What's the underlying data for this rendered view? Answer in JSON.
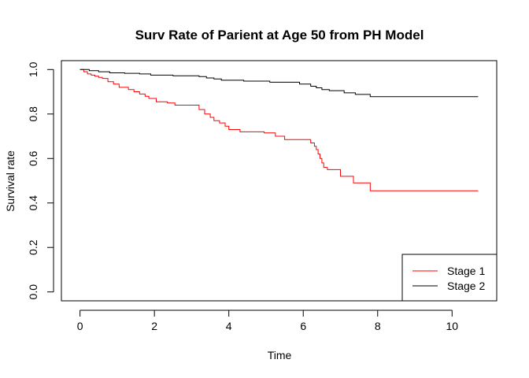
{
  "chart_data": {
    "type": "line",
    "title": "Surv Rate of Parient at Age 50 from PH Model",
    "xlabel": "Time",
    "ylabel": "Survival rate",
    "xlim": [
      -0.5,
      11.2
    ],
    "ylim": [
      -0.04,
      1.04
    ],
    "x_ticks": [
      0,
      2,
      4,
      6,
      8,
      10
    ],
    "y_ticks": [
      0.0,
      0.2,
      0.4,
      0.6,
      0.8,
      1.0
    ],
    "x_tick_labels": [
      "0",
      "2",
      "4",
      "6",
      "8",
      "10"
    ],
    "y_tick_labels": [
      "0.0",
      "0.2",
      "0.4",
      "0.6",
      "0.8",
      "1.0"
    ],
    "step": true,
    "grid": false,
    "legend_position": "bottom-right",
    "series": [
      {
        "name": "Stage 1",
        "color": "#ff0000",
        "x": [
          0,
          0.1,
          0.2,
          0.3,
          0.4,
          0.5,
          0.6,
          0.75,
          0.9,
          1.05,
          1.3,
          1.45,
          1.6,
          1.75,
          1.85,
          2.05,
          2.35,
          2.55,
          3.2,
          3.35,
          3.5,
          3.6,
          3.75,
          3.9,
          4.0,
          4.3,
          4.95,
          5.25,
          5.5,
          6.2,
          6.3,
          6.35,
          6.4,
          6.45,
          6.5,
          6.55,
          6.65,
          7.0,
          7.35,
          7.8,
          10.7
        ],
        "y": [
          1.0,
          0.99,
          0.98,
          0.975,
          0.97,
          0.965,
          0.96,
          0.945,
          0.935,
          0.92,
          0.91,
          0.9,
          0.89,
          0.88,
          0.87,
          0.855,
          0.85,
          0.84,
          0.82,
          0.8,
          0.785,
          0.77,
          0.76,
          0.745,
          0.73,
          0.72,
          0.715,
          0.7,
          0.685,
          0.67,
          0.655,
          0.64,
          0.62,
          0.6,
          0.58,
          0.56,
          0.55,
          0.52,
          0.49,
          0.455,
          0.455
        ]
      },
      {
        "name": "Stage 2",
        "color": "#000000",
        "x": [
          0,
          0.25,
          0.5,
          0.8,
          1.2,
          1.6,
          1.9,
          2.5,
          3.2,
          3.4,
          3.6,
          3.8,
          4.4,
          5.1,
          5.9,
          6.2,
          6.35,
          6.5,
          6.7,
          7.1,
          7.4,
          7.8,
          10.7
        ],
        "y": [
          1.0,
          0.995,
          0.99,
          0.985,
          0.983,
          0.98,
          0.975,
          0.972,
          0.968,
          0.962,
          0.958,
          0.952,
          0.948,
          0.943,
          0.935,
          0.925,
          0.918,
          0.91,
          0.905,
          0.895,
          0.888,
          0.878,
          0.878
        ]
      }
    ]
  }
}
